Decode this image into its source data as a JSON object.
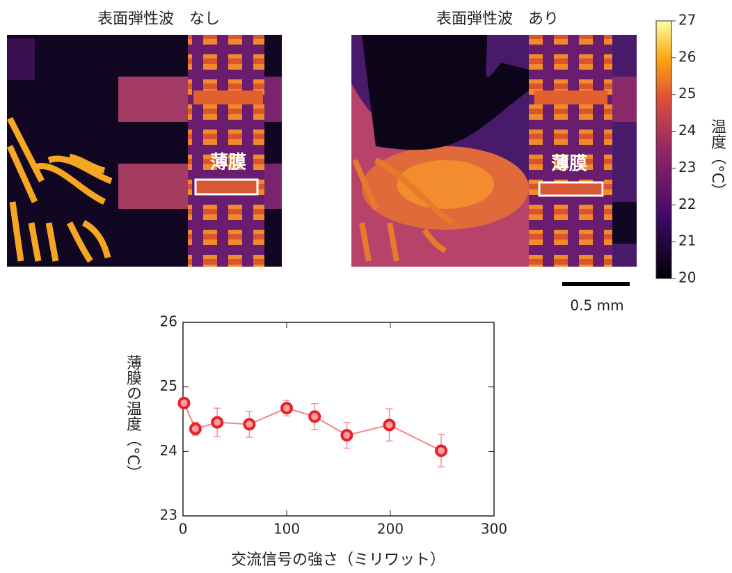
{
  "panels": {
    "left_title": "表面弾性波　なし",
    "right_title": "表面弾性波　あり",
    "film_label_left": "薄膜",
    "film_label_right": "薄膜",
    "scale_bar": "0.5 mm"
  },
  "colorbar": {
    "label": "温度（°C）",
    "lim": [
      20,
      27
    ],
    "ticks": [
      20,
      21,
      22,
      23,
      24,
      25,
      26,
      27
    ]
  },
  "chart_data": {
    "type": "line",
    "x_label": "交流信号の強さ（ミリワット）",
    "y_label": "薄膜の温度（°C）",
    "x": [
      1,
      12,
      33,
      64,
      100,
      127,
      158,
      199,
      249
    ],
    "series": [
      {
        "color": "#e8202a",
        "values": [
          24.75,
          24.35,
          24.45,
          24.42,
          24.67,
          24.54,
          24.25,
          24.41,
          24.01
        ],
        "errors": [
          0.05,
          0.1,
          0.22,
          0.2,
          0.12,
          0.2,
          0.2,
          0.25,
          0.25
        ]
      }
    ],
    "xlim": [
      0,
      300
    ],
    "ylim": [
      23,
      26
    ],
    "xticks": [
      0,
      100,
      200,
      300
    ],
    "yticks": [
      23,
      24,
      25,
      26
    ]
  }
}
